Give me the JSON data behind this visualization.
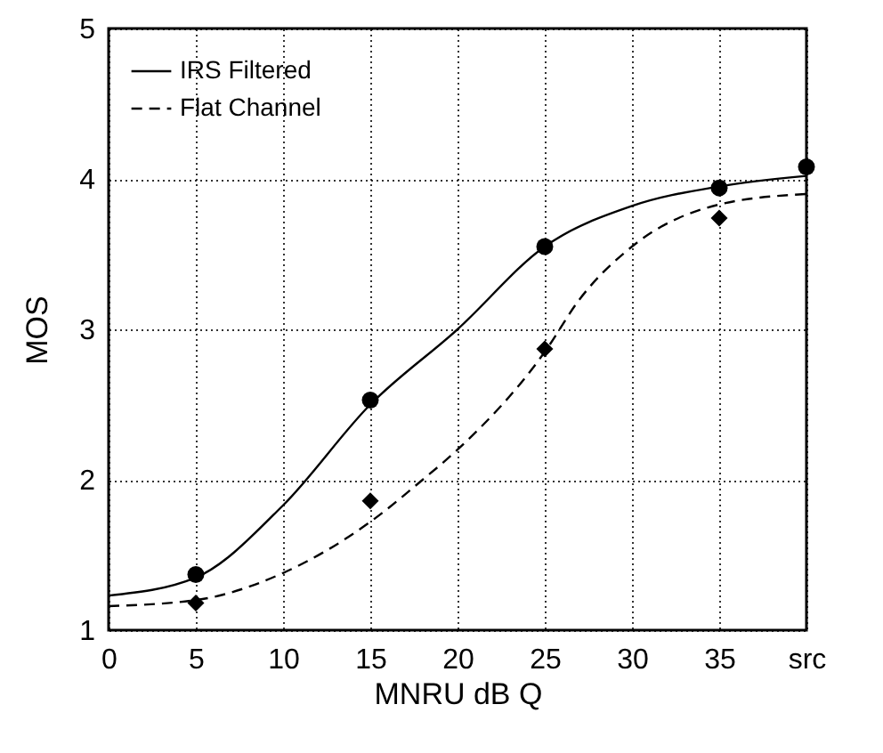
{
  "chart_data": {
    "type": "line",
    "xlabel": "MNRU dB Q",
    "ylabel": "MOS",
    "xlim": [
      0,
      40
    ],
    "ylim": [
      1,
      5
    ],
    "xticks": [
      0,
      5,
      10,
      15,
      20,
      25,
      30,
      35,
      {
        "value": 40,
        "label": "src"
      }
    ],
    "yticks": [
      1,
      2,
      3,
      4,
      5
    ],
    "grid": true,
    "legend": "top left",
    "series": [
      {
        "name": "IRS Filtered",
        "color": "#000000",
        "line_style": "solid",
        "x": [
          0,
          5,
          10,
          15,
          20,
          25,
          30,
          35,
          40
        ],
        "values": [
          1.23,
          1.35,
          1.83,
          2.5,
          3.0,
          3.55,
          3.82,
          3.95,
          4.02
        ]
      },
      {
        "name": "Flat Channel",
        "color": "#000000",
        "line_style": "dashed",
        "x": [
          0,
          5,
          10,
          15,
          18,
          20,
          25,
          27,
          30,
          35,
          40
        ],
        "values": [
          1.16,
          1.2,
          1.38,
          1.72,
          2.0,
          2.2,
          2.85,
          3.2,
          3.55,
          3.83,
          3.9
        ]
      },
      {
        "type": "scatter",
        "color": "#000000",
        "marker": "circle",
        "x": [
          5,
          15,
          25,
          35,
          40
        ],
        "values": [
          1.37,
          2.53,
          3.55,
          3.94,
          4.08
        ]
      },
      {
        "type": "scatter",
        "color": "#000000",
        "marker": "diamond",
        "x": [
          5,
          15,
          25,
          35
        ],
        "values": [
          1.18,
          1.86,
          2.87,
          3.74
        ]
      }
    ]
  }
}
